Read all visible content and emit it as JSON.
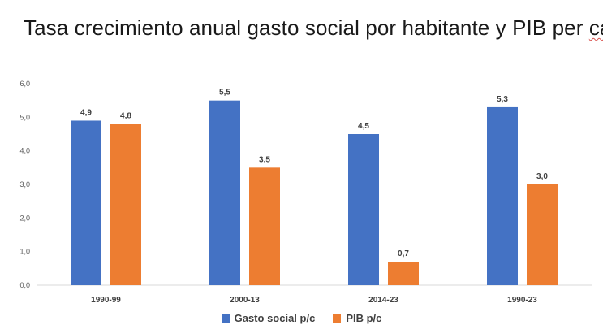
{
  "title_main": "Tasa crecimiento anual gasto social por habitante y PIB per ",
  "title_tail": "cap",
  "chart_data": {
    "type": "bar",
    "title": "Tasa crecimiento anual gasto social por habitante y PIB per cap",
    "categories": [
      "1990-99",
      "2000-13",
      "2014-23",
      "1990-23"
    ],
    "series": [
      {
        "name": "Gasto social p/c",
        "color": "#4472C4",
        "values": [
          4.9,
          5.5,
          4.5,
          5.3
        ],
        "labels": [
          "4,9",
          "5,5",
          "4,5",
          "5,3"
        ]
      },
      {
        "name": "PIB p/c",
        "color": "#ED7D31",
        "values": [
          4.8,
          3.5,
          0.7,
          3.0
        ],
        "labels": [
          "4,8",
          "3,5",
          "0,7",
          "3,0"
        ]
      }
    ],
    "ylim": [
      0,
      6
    ],
    "yticks": [
      "0,0",
      "1,0",
      "2,0",
      "3,0",
      "4,0",
      "5,0",
      "6,0"
    ],
    "grid": false,
    "legend_position": "bottom"
  }
}
